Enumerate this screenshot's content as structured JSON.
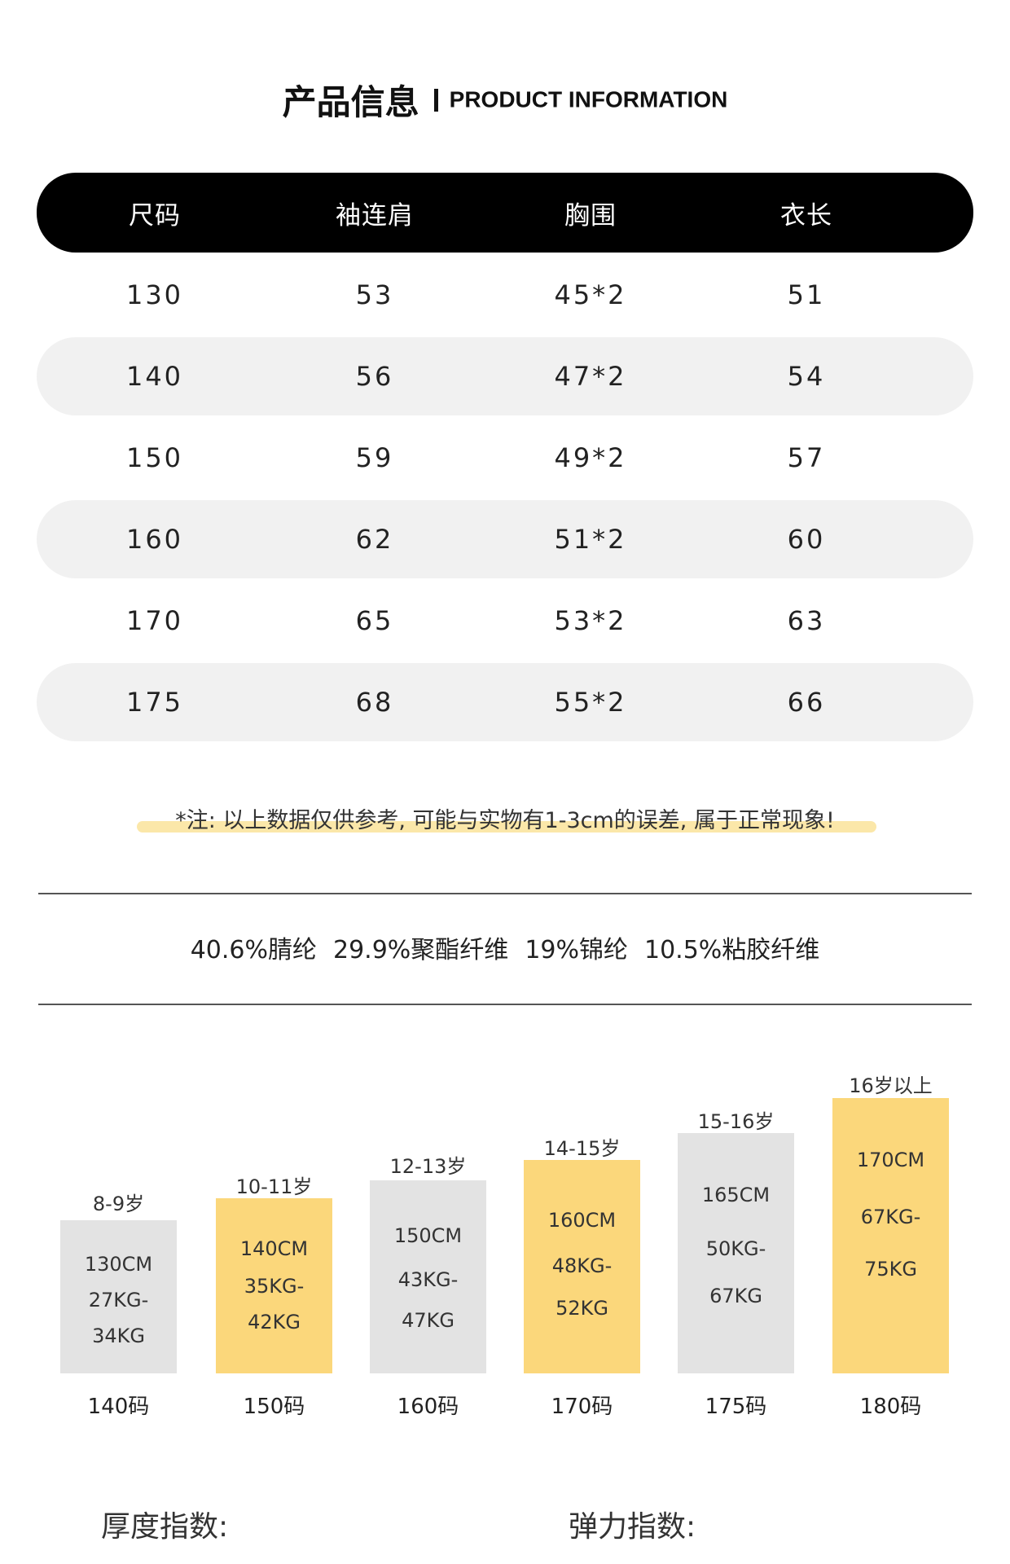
{
  "header": {
    "title_cn": "产品信息",
    "title_en": "PRODUCT INFORMATION"
  },
  "size_table": {
    "headers": [
      "尺码",
      "袖连肩",
      "胸围",
      "衣长"
    ],
    "rows": [
      [
        "130",
        "53",
        "45*2",
        "51"
      ],
      [
        "140",
        "56",
        "47*2",
        "54"
      ],
      [
        "150",
        "59",
        "49*2",
        "57"
      ],
      [
        "160",
        "62",
        "51*2",
        "60"
      ],
      [
        "170",
        "65",
        "53*2",
        "63"
      ],
      [
        "175",
        "68",
        "55*2",
        "66"
      ]
    ]
  },
  "note": "*注: 以上数据仅供参考, 可能与实物有1-3cm的误差, 属于正常现象!",
  "materials": [
    "40.6%腈纶",
    "29.9%聚酯纤维",
    "19%锦纶",
    "10.5%粘胶纤维"
  ],
  "size_guide": [
    {
      "age": "8-9岁",
      "height": "130CM",
      "weight_from": "27KG-",
      "weight_to": "34KG",
      "size": "140码",
      "color": "#e3e3e3"
    },
    {
      "age": "10-11岁",
      "height": "140CM",
      "weight_from": "35KG-",
      "weight_to": "42KG",
      "size": "150码",
      "color": "#fbd77b"
    },
    {
      "age": "12-13岁",
      "height": "150CM",
      "weight_from": "43KG-",
      "weight_to": "47KG",
      "size": "160码",
      "color": "#e3e3e3"
    },
    {
      "age": "14-15岁",
      "height": "160CM",
      "weight_from": "48KG-",
      "weight_to": "52KG",
      "size": "170码",
      "color": "#fbd77b"
    },
    {
      "age": "15-16岁",
      "height": "165CM",
      "weight_from": "50KG-",
      "weight_to": "67KG",
      "size": "175码",
      "color": "#e3e3e3"
    },
    {
      "age": "16岁以上",
      "height": "170CM",
      "weight_from": "67KG-",
      "weight_to": "75KG",
      "size": "180码",
      "color": "#fbd77b"
    }
  ],
  "indices": {
    "thickness": "厚度指数:",
    "elasticity": "弹力指数:"
  },
  "colors": {
    "header_bg": "#000000",
    "row_shade": "#f1f1f1",
    "accent_yellow": "#fbd77b",
    "bar_gray": "#e3e3e3",
    "note_highlight": "#fbe7a9"
  }
}
